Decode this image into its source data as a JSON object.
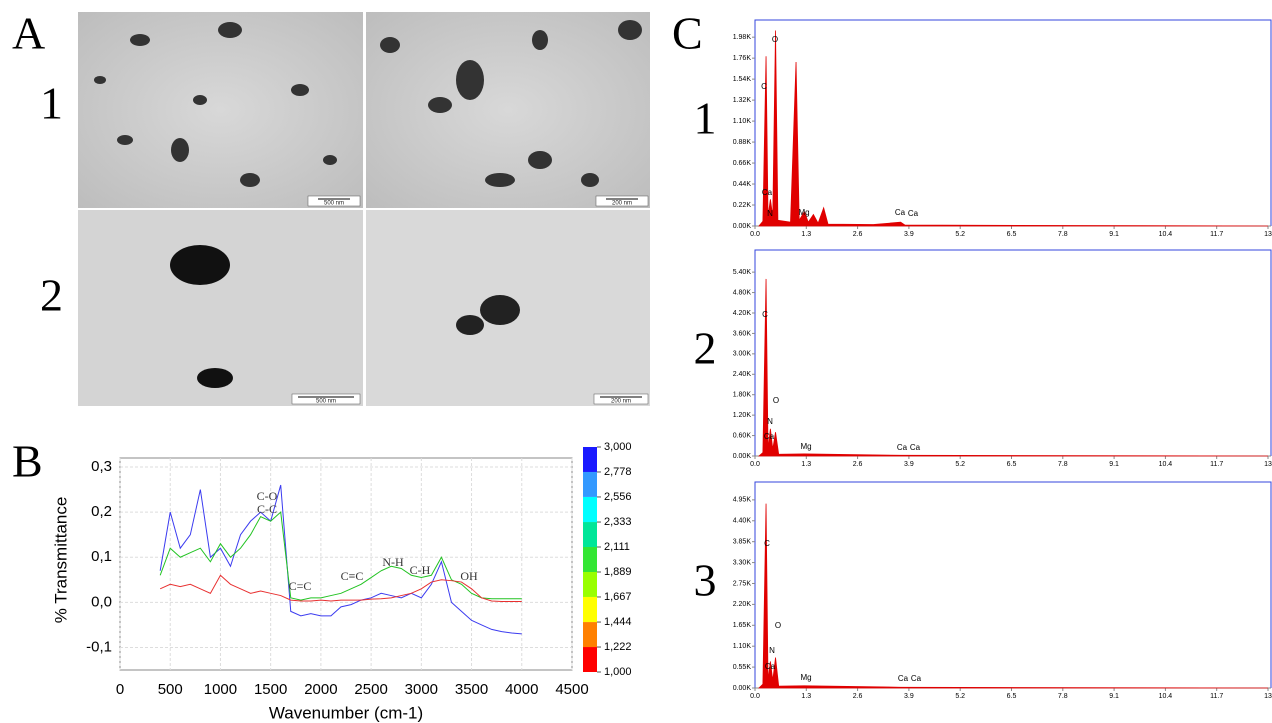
{
  "panel_labels": {
    "a": "A",
    "b": "B",
    "c": "C"
  },
  "tem": {
    "row_labels": [
      "1",
      "2"
    ],
    "images": [
      {
        "scale_bar": "500 nm"
      },
      {
        "scale_bar": "200 nm"
      },
      {
        "scale_bar": "500 nm"
      },
      {
        "scale_bar": "200 nm"
      }
    ]
  },
  "chart_data": [
    {
      "type": "line",
      "x_label": "Wavenumber (cm-1)",
      "y_label": "% Transmittance",
      "x": [
        400,
        500,
        600,
        700,
        800,
        900,
        1000,
        1100,
        1200,
        1300,
        1400,
        1500,
        1600,
        1700,
        1800,
        1900,
        2000,
        2100,
        2200,
        2300,
        2400,
        2500,
        2600,
        2700,
        2800,
        2900,
        3000,
        3100,
        3200,
        3300,
        3400,
        3500,
        3600,
        3700,
        3800,
        3900,
        4000
      ],
      "series": [
        {
          "color": "#3b3bf0",
          "values": [
            0.07,
            0.2,
            0.12,
            0.15,
            0.25,
            0.1,
            0.12,
            0.08,
            0.15,
            0.18,
            0.2,
            0.18,
            0.26,
            -0.02,
            -0.03,
            -0.025,
            -0.03,
            -0.03,
            -0.01,
            -0.005,
            0.005,
            0.01,
            0.02,
            0.015,
            0.01,
            0.02,
            0.01,
            0.04,
            0.09,
            0.0,
            -0.02,
            -0.04,
            -0.05,
            -0.06,
            -0.065,
            -0.068,
            -0.07
          ]
        },
        {
          "color": "#22c322",
          "values": [
            0.06,
            0.12,
            0.1,
            0.11,
            0.12,
            0.09,
            0.13,
            0.1,
            0.12,
            0.15,
            0.19,
            0.18,
            0.2,
            0.01,
            0.005,
            0.01,
            0.01,
            0.015,
            0.02,
            0.03,
            0.04,
            0.055,
            0.07,
            0.08,
            0.075,
            0.06,
            0.055,
            0.06,
            0.1,
            0.05,
            0.04,
            0.02,
            0.01,
            0.008,
            0.008,
            0.008,
            0.008
          ]
        },
        {
          "color": "#e83030",
          "values": [
            0.03,
            0.04,
            0.035,
            0.04,
            0.03,
            0.02,
            0.06,
            0.04,
            0.03,
            0.02,
            0.025,
            0.02,
            0.015,
            0.005,
            0.003,
            0.003,
            0.005,
            0.003,
            0.005,
            0.005,
            0.005,
            0.007,
            0.008,
            0.01,
            0.015,
            0.02,
            0.03,
            0.045,
            0.05,
            0.048,
            0.045,
            0.03,
            0.01,
            0.003,
            0.002,
            0.002,
            0.002
          ]
        }
      ],
      "xlim": [
        0,
        4500
      ],
      "xticks": [
        0,
        500,
        1000,
        1500,
        2000,
        2500,
        3000,
        3500,
        4000,
        4500
      ],
      "ylim": [
        -0.15,
        0.32
      ],
      "yticks": [
        {
          "value": -0.1,
          "label": "-0,1"
        },
        {
          "value": 0,
          "label": "0,0"
        },
        {
          "value": 0.1,
          "label": "0,1"
        },
        {
          "value": 0.2,
          "label": "0,2"
        },
        {
          "value": 0.3,
          "label": "0,3"
        }
      ],
      "grid": true,
      "annotations": [
        "C-O",
        "C-C",
        "C=C",
        "C≡C",
        "N-H",
        "C-H",
        "OH"
      ],
      "colorbar": {
        "ticks": [
          {
            "value": 1000,
            "label": "1,000"
          },
          {
            "value": 1222,
            "label": "1,222"
          },
          {
            "value": 1444,
            "label": "1,444"
          },
          {
            "value": 1667,
            "label": "1,667"
          },
          {
            "value": 1889,
            "label": "1,889"
          },
          {
            "value": 2111,
            "label": "2,111"
          },
          {
            "value": 2333,
            "label": "2,333"
          },
          {
            "value": 2556,
            "label": "2,556"
          },
          {
            "value": 2778,
            "label": "2,778"
          },
          {
            "value": 3000,
            "label": "3,000"
          }
        ],
        "colors": [
          "#ff0000",
          "#ff8000",
          "#ffff00",
          "#99ff00",
          "#33e633",
          "#00e699",
          "#00ffff",
          "#3399ff",
          "#1a1aff"
        ]
      }
    },
    {
      "type": "area",
      "row_label": "1",
      "color": "#e00000",
      "x": [
        0.1,
        0.2,
        0.28,
        0.33,
        0.39,
        0.45,
        0.52,
        0.58,
        0.9,
        1.04,
        1.12,
        1.25,
        1.35,
        1.48,
        1.6,
        1.74,
        1.85,
        3.0,
        3.69,
        3.8,
        13
      ],
      "values": [
        0,
        50,
        1780,
        100,
        280,
        100,
        2050,
        60,
        40,
        1720,
        60,
        150,
        40,
        120,
        30,
        190,
        20,
        15,
        40,
        10,
        0
      ],
      "xlim": [
        0,
        13
      ],
      "xticks": [
        {
          "value": 0,
          "label": "0.0"
        },
        1.3,
        2.6,
        3.9,
        5.2,
        6.5,
        7.8,
        9.1,
        10.4,
        11.7,
        13
      ],
      "ylim": [
        0,
        2160
      ],
      "yticks": [
        {
          "value": 0,
          "label": "0.00K"
        },
        {
          "value": 220,
          "label": "0.22K"
        },
        {
          "value": 440,
          "label": "0.44K"
        },
        {
          "value": 660,
          "label": "0.66K"
        },
        {
          "value": 880,
          "label": "0.88K"
        },
        {
          "value": 1100,
          "label": "1.10K"
        },
        {
          "value": 1320,
          "label": "1.32K"
        },
        {
          "value": 1540,
          "label": "1.54K"
        },
        {
          "value": 1760,
          "label": "1.76K"
        },
        {
          "value": 1980,
          "label": "1.98K"
        }
      ],
      "peak_labels": [
        "O",
        "C",
        "Ca",
        "N",
        "Mg",
        "Ca",
        "Ca"
      ]
    },
    {
      "type": "area",
      "row_label": "2",
      "color": "#e00000",
      "x": [
        0.1,
        0.2,
        0.28,
        0.33,
        0.39,
        0.45,
        0.52,
        0.6,
        1.25,
        3.69,
        13
      ],
      "values": [
        0,
        100,
        5200,
        200,
        800,
        200,
        700,
        50,
        60,
        20,
        0
      ],
      "xlim": [
        0,
        13
      ],
      "xticks": [
        {
          "value": 0,
          "label": "0.0"
        },
        1.3,
        2.6,
        3.9,
        5.2,
        6.5,
        7.8,
        9.1,
        10.4,
        11.7,
        13
      ],
      "ylim": [
        0,
        6050
      ],
      "yticks": [
        {
          "value": 0,
          "label": "0.00K"
        },
        {
          "value": 600,
          "label": "0.60K"
        },
        {
          "value": 1200,
          "label": "1.20K"
        },
        {
          "value": 1800,
          "label": "1.80K"
        },
        {
          "value": 2400,
          "label": "2.40K"
        },
        {
          "value": 3000,
          "label": "3.00K"
        },
        {
          "value": 3600,
          "label": "3.60K"
        },
        {
          "value": 4200,
          "label": "4.20K"
        },
        {
          "value": 4800,
          "label": "4.80K"
        },
        {
          "value": 5400,
          "label": "5.40K"
        }
      ],
      "peak_labels": [
        "C",
        "O",
        "N",
        "Ca",
        "Mg",
        "Ca",
        "Ca"
      ]
    },
    {
      "type": "area",
      "row_label": "3",
      "color": "#e00000",
      "x": [
        0.1,
        0.2,
        0.28,
        0.33,
        0.39,
        0.45,
        0.52,
        0.6,
        1.25,
        3.69,
        13
      ],
      "values": [
        0,
        100,
        4850,
        200,
        700,
        200,
        800,
        50,
        60,
        20,
        0
      ],
      "xlim": [
        0,
        13
      ],
      "xticks": [
        {
          "value": 0,
          "label": "0.0"
        },
        1.3,
        2.6,
        3.9,
        5.2,
        6.5,
        7.8,
        9.1,
        10.4,
        11.7,
        13
      ],
      "ylim": [
        0,
        5420
      ],
      "yticks": [
        {
          "value": 0,
          "label": "0.00K"
        },
        {
          "value": 550,
          "label": "0.55K"
        },
        {
          "value": 1100,
          "label": "1.10K"
        },
        {
          "value": 1650,
          "label": "1.65K"
        },
        {
          "value": 2200,
          "label": "2.20K"
        },
        {
          "value": 2750,
          "label": "2.75K"
        },
        {
          "value": 3300,
          "label": "3.30K"
        },
        {
          "value": 3850,
          "label": "3.85K"
        },
        {
          "value": 4400,
          "label": "4.40K"
        },
        {
          "value": 4950,
          "label": "4.95K"
        }
      ],
      "peak_labels": [
        "C",
        "O",
        "N",
        "Ca",
        "Mg",
        "Ca",
        "Ca"
      ]
    }
  ]
}
